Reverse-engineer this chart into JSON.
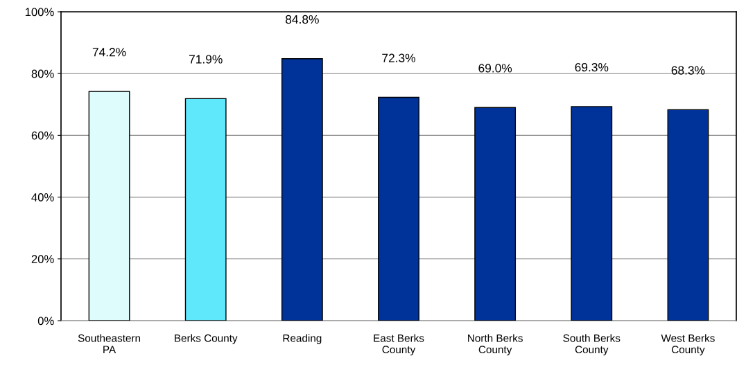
{
  "chart_data": {
    "type": "bar",
    "categories": [
      "Southeastern\nPA",
      "Berks County",
      "Reading",
      "East Berks\nCounty",
      "North Berks\nCounty",
      "South Berks\nCounty",
      "West Berks\nCounty"
    ],
    "values": [
      74.2,
      71.9,
      84.8,
      72.3,
      69.0,
      69.3,
      68.3
    ],
    "colors": [
      "#dffcfc",
      "#5fe8fc",
      "#003399",
      "#003399",
      "#003399",
      "#003399",
      "#003399"
    ],
    "value_labels": [
      "74.2%",
      "71.9%",
      "84.8%",
      "72.3%",
      "69.0%",
      "69.3%",
      "68.3%"
    ],
    "ylim": [
      0,
      100
    ],
    "yticks": [
      {
        "value": 0,
        "label": "0%"
      },
      {
        "value": 20,
        "label": "20%"
      },
      {
        "value": 40,
        "label": "40%"
      },
      {
        "value": 60,
        "label": "60%"
      },
      {
        "value": 80,
        "label": "80%"
      },
      {
        "value": 100,
        "label": "100%"
      }
    ],
    "grid": "y",
    "legend": false
  }
}
